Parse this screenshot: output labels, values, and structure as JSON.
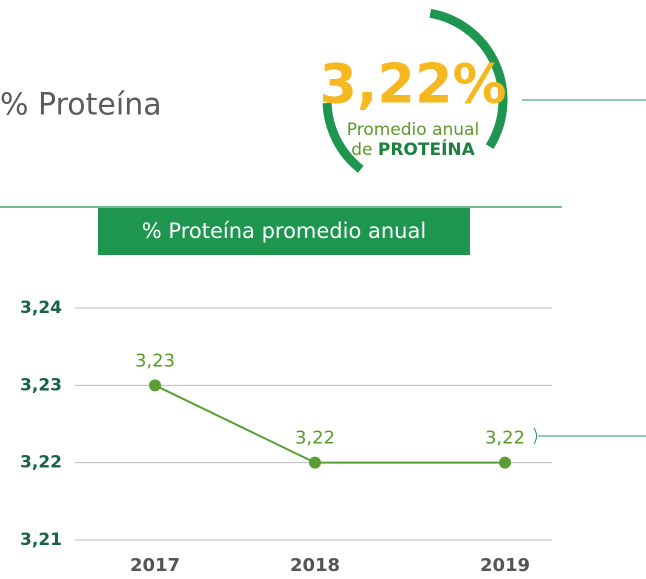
{
  "heading": "% Proteína",
  "badge": {
    "value_text": "3,22%",
    "line1": "Promedio anual",
    "line2_prefix": "de",
    "line2_strong": "PROTEÍNA"
  },
  "chart_data": {
    "type": "line",
    "title": "% Proteína promedio anual",
    "categories": [
      "2017",
      "2018",
      "2019"
    ],
    "series": [
      {
        "name": "% Proteína",
        "color": "#5a9e34",
        "values": [
          3.23,
          3.22,
          3.22
        ],
        "value_labels": [
          "3,23",
          "3,22",
          "3,22"
        ]
      }
    ],
    "ylim": [
      3.21,
      3.24
    ],
    "yticks": [
      {
        "value": 3.21,
        "label": "3,21"
      },
      {
        "value": 3.22,
        "label": "3,22"
      },
      {
        "value": 3.23,
        "label": "3,23"
      },
      {
        "value": 3.24,
        "label": "3,24"
      }
    ],
    "grid": true
  }
}
